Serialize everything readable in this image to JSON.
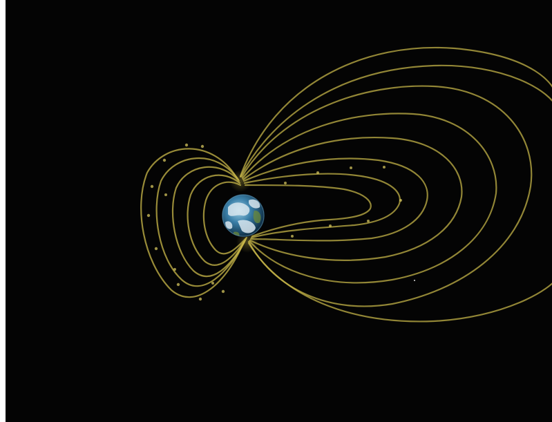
{
  "scene": {
    "background_color": "#040404",
    "field_line_color": "#c9b84a",
    "planet": {
      "ocean_color": "#3a7fa8",
      "land_color": "#d8e6ee",
      "icon": "earth-globe"
    }
  }
}
